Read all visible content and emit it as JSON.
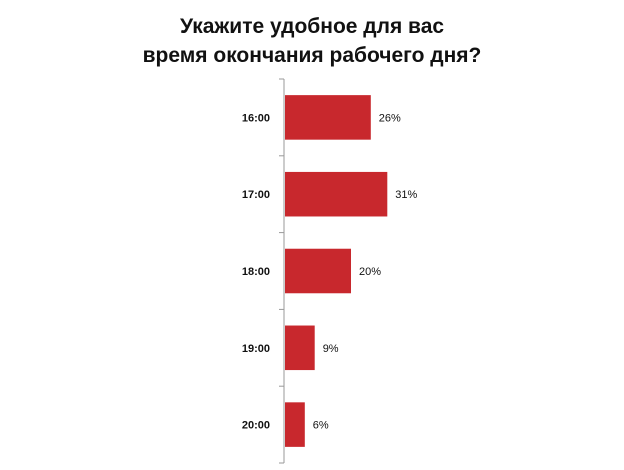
{
  "chart_data": {
    "type": "bar",
    "orientation": "horizontal",
    "title_lines": [
      "Укажите удобное для вас",
      "время окончания рабочего дня?"
    ],
    "categories": [
      "16:00",
      "17:00",
      "18:00",
      "19:00",
      "20:00"
    ],
    "values": [
      26,
      31,
      20,
      9,
      6
    ],
    "value_labels": [
      "26%",
      "31%",
      "20%",
      "9%",
      "6%"
    ],
    "xlim": [
      0,
      100
    ],
    "grid": false,
    "legend": "none",
    "bar_color": "#c8282d"
  }
}
